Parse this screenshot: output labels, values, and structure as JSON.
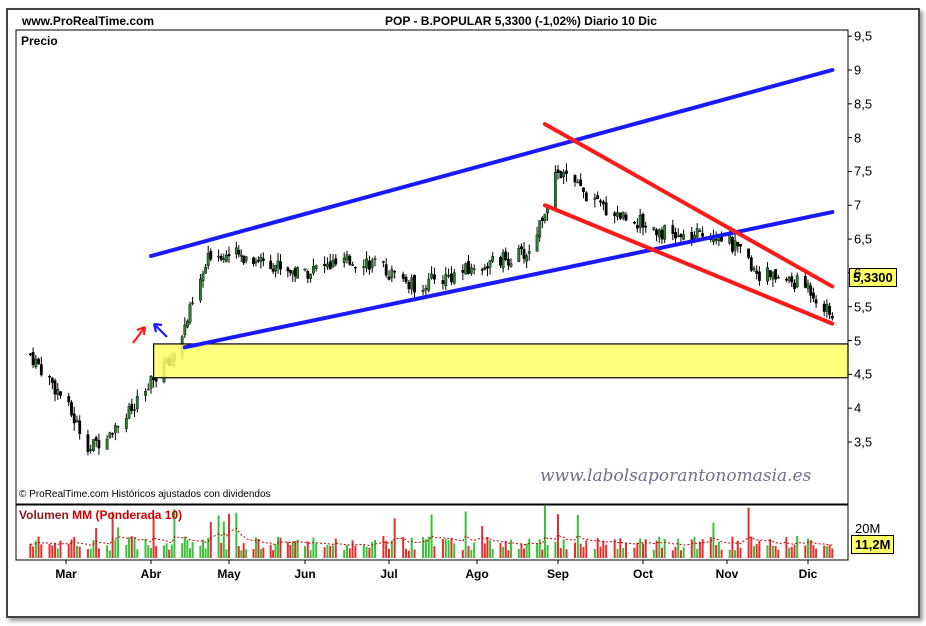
{
  "header": {
    "site": "www.ProRealTime.com",
    "ticker": "POP - B.POPULAR    5,3300 (-1,02%)    Diario  10 Dic"
  },
  "price_panel": {
    "label": "Precio",
    "copyright": "© ProRealTime.com  Históricos ajustados con dividendos",
    "watermark": "www.labolsaporantonomasia.es",
    "last_price": "5,3300"
  },
  "volume_panel": {
    "title_part1": "Volumen",
    "title_part2": "MM (Ponderada 10)",
    "tick_label": "20M",
    "last_value": "11,2M"
  },
  "colors": {
    "candle_up": "#2e7d2e",
    "candle_down": "#000000",
    "channel_blue": "#1a1aff",
    "channel_red": "#ff1a1a",
    "zone_fill": "#ffff66",
    "volume_bar": "#e23030",
    "volume_bar_up": "#3cbf3c",
    "volume_ma": "#c00000"
  },
  "chart_data": {
    "type": "candlestick",
    "title": "POP - B.POPULAR",
    "frequency": "Diario",
    "x_months": [
      "Mar",
      "Abr",
      "May",
      "Jun",
      "Jul",
      "Ago",
      "Sep",
      "Oct",
      "Nov",
      "Dic"
    ],
    "y_ticks": [
      "3,5",
      "4",
      "4,5",
      "5",
      "5,5",
      "6",
      "6,5",
      "7",
      "7,5",
      "8",
      "8,5",
      "9",
      "9,5"
    ],
    "ylim": [
      3.1,
      9.5
    ],
    "close_path": [
      {
        "date": "2009-02-16",
        "close": 4.8
      },
      {
        "date": "2009-02-27",
        "close": 4.2
      },
      {
        "date": "2009-03-10",
        "close": 3.4
      },
      {
        "date": "2009-03-16",
        "close": 3.65
      },
      {
        "date": "2009-03-26",
        "close": 4.0
      },
      {
        "date": "2009-04-06",
        "close": 4.65
      },
      {
        "date": "2009-04-08",
        "close": 4.65
      },
      {
        "date": "2009-04-14",
        "close": 5.2
      },
      {
        "date": "2009-04-24",
        "close": 6.3
      },
      {
        "date": "2009-05-15",
        "close": 6.2
      },
      {
        "date": "2009-05-29",
        "close": 6.0
      },
      {
        "date": "2009-06-22",
        "close": 6.2
      },
      {
        "date": "2009-07-10",
        "close": 5.8
      },
      {
        "date": "2009-08-03",
        "close": 6.1
      },
      {
        "date": "2009-08-21",
        "close": 6.3
      },
      {
        "date": "2009-09-01",
        "close": 7.5
      },
      {
        "date": "2009-09-15",
        "close": 7.0
      },
      {
        "date": "2009-10-15",
        "close": 6.5
      },
      {
        "date": "2009-10-29",
        "close": 6.6
      },
      {
        "date": "2009-11-13",
        "close": 6.0
      },
      {
        "date": "2009-12-01",
        "close": 5.8
      },
      {
        "date": "2009-12-10",
        "close": 5.33
      }
    ],
    "last_close": 5.33,
    "change_pct": -1.02,
    "support_zone": {
      "from": "2009-04-02",
      "to": "2009-12-10",
      "low": 4.45,
      "high": 4.95
    },
    "channel_blue_upper": [
      {
        "date": "2009-04-01",
        "price": 6.25
      },
      {
        "date": "2009-12-10",
        "price": 9.0
      }
    ],
    "channel_blue_lower": [
      {
        "date": "2009-04-14",
        "price": 4.9
      },
      {
        "date": "2009-12-10",
        "price": 6.9
      }
    ],
    "channel_red_upper": [
      {
        "date": "2009-08-27",
        "price": 8.2
      },
      {
        "date": "2009-12-10",
        "price": 5.8
      }
    ],
    "channel_red_lower": [
      {
        "date": "2009-08-27",
        "price": 7.0
      },
      {
        "date": "2009-12-10",
        "price": 5.25
      }
    ],
    "volume_axis_ticks": [
      "20M"
    ],
    "volume_last": "11,2M",
    "volume_indicator": "MM (Ponderada 10)"
  }
}
